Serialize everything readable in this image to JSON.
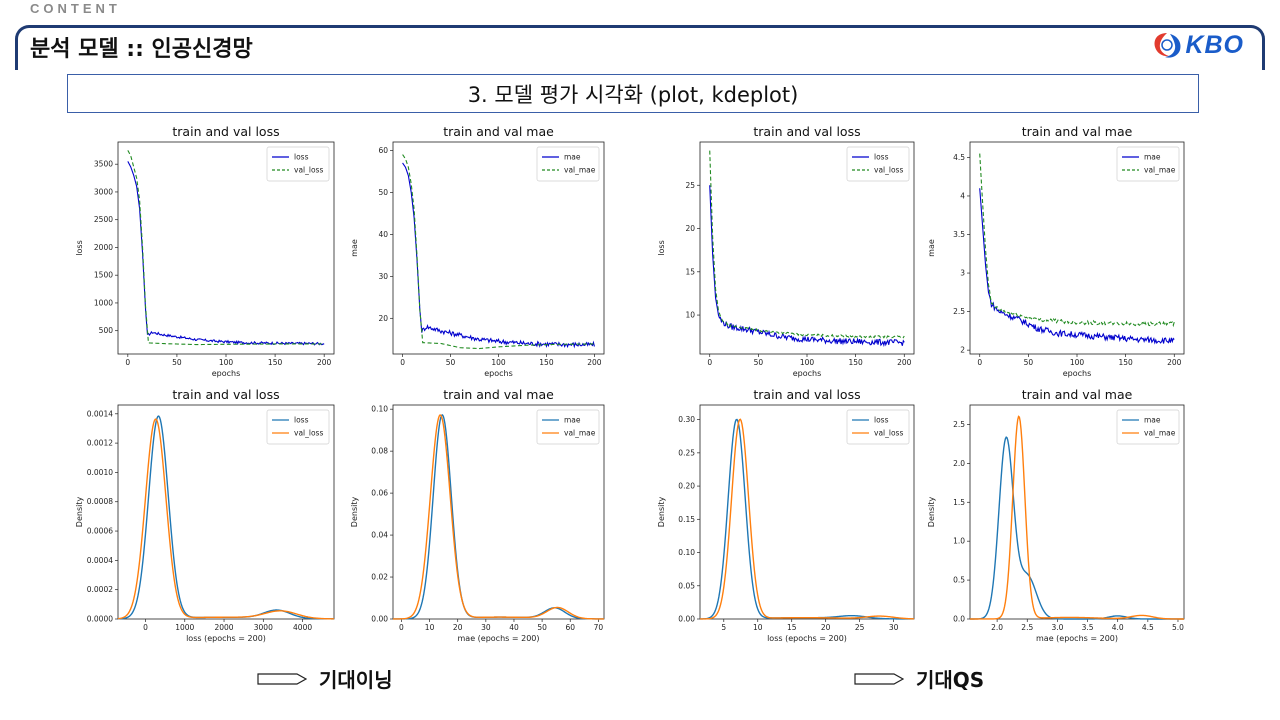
{
  "header": {
    "section_label": "CONTENT",
    "title": "분석 모델 :: 인공신경망",
    "logo_text": "KBO",
    "logo_colors": {
      "red": "#e23b2e",
      "blue": "#1a5cc9"
    }
  },
  "subtitle": "3. 모델 평가 시각화 (plot, kdeplot)",
  "captions": {
    "left": "기대이닝",
    "right": "기대QS"
  },
  "colors": {
    "blue_line": "#0000cd",
    "green_dash": "#228b22",
    "kde_blue": "#1f77b4",
    "kde_orange": "#ff7f0e"
  },
  "chart_data": [
    {
      "id": "c1",
      "type": "line",
      "title": "train and val loss",
      "xlabel": "epochs",
      "ylabel": "loss",
      "xlim": [
        -10,
        210
      ],
      "ylim": [
        80,
        3900
      ],
      "xticks": [
        0,
        50,
        100,
        150,
        200
      ],
      "yticks": [
        500,
        1000,
        1500,
        2000,
        2500,
        3000,
        3500
      ],
      "legend": "top-right",
      "series": [
        {
          "name": "loss",
          "style": "solid",
          "points": [
            [
              0,
              3550
            ],
            [
              3,
              3450
            ],
            [
              6,
              3300
            ],
            [
              9,
              3100
            ],
            [
              12,
              2700
            ],
            [
              15,
              1900
            ],
            [
              18,
              900
            ],
            [
              20,
              420
            ],
            [
              25,
              470
            ],
            [
              35,
              430
            ],
            [
              50,
              390
            ],
            [
              70,
              340
            ],
            [
              90,
              310
            ],
            [
              110,
              290
            ],
            [
              130,
              280
            ],
            [
              150,
              275
            ],
            [
              170,
              270
            ],
            [
              185,
              270
            ],
            [
              200,
              265
            ]
          ],
          "noise": 22,
          "noise_from": 20
        },
        {
          "name": "val_loss",
          "style": "dashed",
          "points": [
            [
              0,
              3750
            ],
            [
              3,
              3650
            ],
            [
              6,
              3450
            ],
            [
              9,
              3250
            ],
            [
              12,
              2850
            ],
            [
              15,
              2000
            ],
            [
              18,
              950
            ],
            [
              21,
              280
            ],
            [
              40,
              265
            ],
            [
              70,
              250
            ],
            [
              100,
              255
            ],
            [
              130,
              258
            ],
            [
              160,
              262
            ],
            [
              200,
              262
            ]
          ],
          "noise": 0
        }
      ]
    },
    {
      "id": "c2",
      "type": "line",
      "title": "train and val mae",
      "xlabel": "epochs",
      "ylabel": "mae",
      "xlim": [
        -10,
        210
      ],
      "ylim": [
        11.5,
        62
      ],
      "xticks": [
        0,
        50,
        100,
        150,
        200
      ],
      "yticks": [
        20,
        30,
        40,
        50,
        60
      ],
      "legend": "top-right",
      "series": [
        {
          "name": "mae",
          "style": "solid",
          "points": [
            [
              0,
              57
            ],
            [
              3,
              56
            ],
            [
              6,
              54
            ],
            [
              9,
              50
            ],
            [
              12,
              44
            ],
            [
              15,
              34
            ],
            [
              18,
              22
            ],
            [
              20,
              17
            ],
            [
              25,
              18
            ],
            [
              40,
              17
            ],
            [
              60,
              16
            ],
            [
              80,
              15
            ],
            [
              100,
              14.5
            ],
            [
              130,
              14
            ],
            [
              160,
              13.8
            ],
            [
              200,
              13.7
            ]
          ],
          "noise": 0.55,
          "noise_from": 20
        },
        {
          "name": "val_mae",
          "style": "dashed",
          "points": [
            [
              0,
              59
            ],
            [
              3,
              58
            ],
            [
              6,
              56
            ],
            [
              9,
              52
            ],
            [
              12,
              46
            ],
            [
              15,
              35
            ],
            [
              18,
              22
            ],
            [
              21,
              14.2
            ],
            [
              40,
              14
            ],
            [
              60,
              13
            ],
            [
              80,
              12.8
            ],
            [
              100,
              13.2
            ],
            [
              130,
              13.6
            ],
            [
              160,
              13.8
            ],
            [
              200,
              13.9
            ]
          ],
          "noise": 0
        }
      ]
    },
    {
      "id": "c3",
      "type": "line",
      "title": "train and val loss",
      "xlabel": "epochs",
      "ylabel": "loss",
      "xlim": [
        -10,
        210
      ],
      "ylim": [
        5.5,
        30
      ],
      "xticks": [
        0,
        50,
        100,
        150,
        200
      ],
      "yticks": [
        10,
        15,
        20,
        25
      ],
      "legend": "top-right",
      "series": [
        {
          "name": "loss",
          "style": "solid",
          "points": [
            [
              0,
              25
            ],
            [
              3,
              17
            ],
            [
              6,
              12
            ],
            [
              9,
              10
            ],
            [
              12,
              9.3
            ],
            [
              20,
              8.7
            ],
            [
              40,
              8.3
            ],
            [
              60,
              7.8
            ],
            [
              80,
              7.4
            ],
            [
              100,
              7.2
            ],
            [
              130,
              7
            ],
            [
              160,
              6.9
            ],
            [
              200,
              6.8
            ]
          ],
          "noise": 0.35,
          "noise_from": 10
        },
        {
          "name": "val_loss",
          "style": "dashed",
          "points": [
            [
              0,
              29
            ],
            [
              3,
              19
            ],
            [
              6,
              13
            ],
            [
              9,
              10.5
            ],
            [
              12,
              9.5
            ],
            [
              20,
              8.8
            ],
            [
              40,
              8.4
            ],
            [
              60,
              8.1
            ],
            [
              80,
              7.9
            ],
            [
              100,
              7.7
            ],
            [
              130,
              7.6
            ],
            [
              160,
              7.5
            ],
            [
              200,
              7.5
            ]
          ],
          "noise": 0.12,
          "noise_from": 10
        }
      ]
    },
    {
      "id": "c4",
      "type": "line",
      "title": "train and val mae",
      "xlabel": "epochs",
      "ylabel": "mae",
      "xlim": [
        -10,
        210
      ],
      "ylim": [
        1.95,
        4.7
      ],
      "xticks": [
        0,
        50,
        100,
        150,
        200
      ],
      "yticks": [
        2.0,
        2.5,
        3.0,
        3.5,
        4.0,
        4.5
      ],
      "legend": "top-right",
      "series": [
        {
          "name": "mae",
          "style": "solid",
          "points": [
            [
              0,
              4.1
            ],
            [
              3,
              3.6
            ],
            [
              6,
              3.1
            ],
            [
              9,
              2.75
            ],
            [
              12,
              2.6
            ],
            [
              20,
              2.5
            ],
            [
              40,
              2.4
            ],
            [
              60,
              2.28
            ],
            [
              80,
              2.22
            ],
            [
              100,
              2.2
            ],
            [
              130,
              2.17
            ],
            [
              160,
              2.14
            ],
            [
              200,
              2.12
            ]
          ],
          "noise": 0.04,
          "noise_from": 10
        },
        {
          "name": "val_mae",
          "style": "dashed",
          "points": [
            [
              0,
              4.55
            ],
            [
              3,
              3.9
            ],
            [
              6,
              3.3
            ],
            [
              9,
              2.85
            ],
            [
              12,
              2.6
            ],
            [
              20,
              2.52
            ],
            [
              40,
              2.45
            ],
            [
              60,
              2.4
            ],
            [
              80,
              2.38
            ],
            [
              100,
              2.36
            ],
            [
              130,
              2.35
            ],
            [
              160,
              2.34
            ],
            [
              200,
              2.34
            ]
          ],
          "noise": 0.025,
          "noise_from": 10
        }
      ]
    },
    {
      "id": "c5",
      "type": "area",
      "title": "train and val loss",
      "xlabel": "loss (epochs = 200)",
      "ylabel": "Density",
      "xlim": [
        -700,
        4800
      ],
      "ylim": [
        0,
        0.00146
      ],
      "xticks": [
        0,
        1000,
        2000,
        3000,
        4000
      ],
      "yticks": [
        0,
        0.0002,
        0.0004,
        0.0006,
        0.0008,
        0.001,
        0.0012,
        0.0014
      ],
      "ytick_labels": [
        "0.0000",
        "0.0002",
        "0.0004",
        "0.0006",
        "0.0008",
        "0.0010",
        "0.0012",
        "0.0014"
      ],
      "legend": "top-right",
      "series": [
        {
          "name": "loss",
          "color": "kde_blue",
          "components": [
            [
              330,
              250,
              0.00138
            ],
            [
              3350,
              330,
              5.5e-05
            ],
            [
              2000,
              1200,
              1.2e-05
            ]
          ]
        },
        {
          "name": "val_loss",
          "color": "kde_orange",
          "components": [
            [
              260,
              260,
              0.00136
            ],
            [
              3450,
              400,
              5e-05
            ],
            [
              2000,
              1200,
              1.2e-05
            ]
          ]
        }
      ]
    },
    {
      "id": "c6",
      "type": "area",
      "title": "train and val mae",
      "xlabel": "mae (epochs = 200)",
      "ylabel": "Density",
      "xlim": [
        -3,
        72
      ],
      "ylim": [
        0,
        0.102
      ],
      "xticks": [
        0,
        10,
        20,
        30,
        40,
        50,
        60,
        70
      ],
      "yticks": [
        0,
        0.02,
        0.04,
        0.06,
        0.08,
        0.1
      ],
      "ytick_labels": [
        "0.00",
        "0.02",
        "0.04",
        "0.06",
        "0.08",
        "0.10"
      ],
      "legend": "top-right",
      "series": [
        {
          "name": "mae",
          "color": "kde_blue",
          "components": [
            [
              14.5,
              3.2,
              0.097
            ],
            [
              54.5,
              3.6,
              0.005
            ],
            [
              35,
              14,
              0.0009
            ]
          ]
        },
        {
          "name": "val_mae",
          "color": "kde_orange",
          "components": [
            [
              13.8,
              3.5,
              0.097
            ],
            [
              55.5,
              3.8,
              0.0052
            ],
            [
              35,
              14,
              0.0009
            ]
          ]
        }
      ]
    },
    {
      "id": "c7",
      "type": "area",
      "title": "train and val loss",
      "xlabel": "loss (epochs = 200)",
      "ylabel": "Density",
      "xlim": [
        1.5,
        33
      ],
      "ylim": [
        0,
        0.322
      ],
      "xticks": [
        5,
        10,
        15,
        20,
        25,
        30
      ],
      "yticks": [
        0,
        0.05,
        0.1,
        0.15,
        0.2,
        0.25,
        0.3
      ],
      "ytick_labels": [
        "0.00",
        "0.05",
        "0.10",
        "0.15",
        "0.20",
        "0.25",
        "0.30"
      ],
      "legend": "top-right",
      "series": [
        {
          "name": "loss",
          "color": "kde_blue",
          "components": [
            [
              6.9,
              1.25,
              0.3
            ],
            [
              24,
              2,
              0.004
            ],
            [
              17,
              6,
              0.002
            ]
          ]
        },
        {
          "name": "val_loss",
          "color": "kde_orange",
          "components": [
            [
              7.4,
              1.25,
              0.3
            ],
            [
              28,
              2,
              0.004
            ],
            [
              17,
              6,
              0.002
            ]
          ]
        }
      ]
    },
    {
      "id": "c8",
      "type": "area",
      "title": "train and val mae",
      "xlabel": "mae (epochs = 200)",
      "ylabel": "Density",
      "xlim": [
        1.55,
        5.1
      ],
      "ylim": [
        0,
        2.75
      ],
      "xticks": [
        2.0,
        2.5,
        3.0,
        3.5,
        4.0,
        4.5,
        5.0
      ],
      "yticks": [
        0,
        0.5,
        1.0,
        1.5,
        2.0,
        2.5
      ],
      "ytick_labels": [
        "0.0",
        "0.5",
        "1.0",
        "1.5",
        "2.0",
        "2.5"
      ],
      "xtick_labels": [
        "2.0",
        "2.5",
        "3.0",
        "3.5",
        "4.0",
        "4.5",
        "5.0"
      ],
      "legend": "top-right",
      "series": [
        {
          "name": "mae",
          "color": "kde_blue",
          "components": [
            [
              2.15,
              0.12,
              2.3
            ],
            [
              2.5,
              0.15,
              0.55
            ],
            [
              4.0,
              0.15,
              0.04
            ]
          ]
        },
        {
          "name": "val_mae",
          "color": "kde_orange",
          "components": [
            [
              2.36,
              0.1,
              2.6
            ],
            [
              4.4,
              0.18,
              0.045
            ],
            [
              3.2,
              0.5,
              0.02
            ]
          ]
        }
      ]
    }
  ]
}
